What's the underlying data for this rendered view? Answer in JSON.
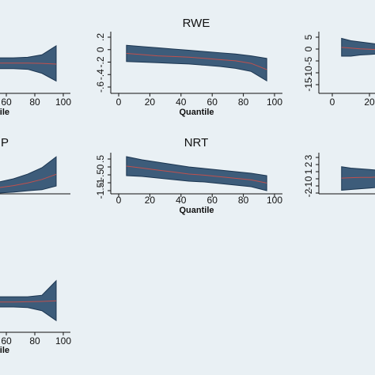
{
  "chart_data": [
    {
      "type": "quantile",
      "xlabel": "Quantile",
      "xlim": [
        0,
        100
      ],
      "ylim": [
        -1,
        1
      ],
      "xticks": [
        60,
        80,
        100
      ],
      "yticks": [],
      "x": [
        55,
        65,
        75,
        85,
        95
      ],
      "upper": [
        0.15,
        0.15,
        0.17,
        0.25,
        0.54
      ],
      "lower": [
        -0.2,
        -0.2,
        -0.22,
        -0.35,
        -0.6
      ],
      "estimate": [
        -0.02,
        -0.02,
        -0.02,
        -0.03,
        -0.05
      ],
      "color": "#3d5c7a",
      "line_color": "#c0504d"
    },
    {
      "type": "quantile",
      "title": "RWE",
      "xlabel": "Quantile",
      "xlim": [
        0,
        100
      ],
      "ylim": [
        -0.6,
        0.2
      ],
      "xticks": [
        0,
        20,
        40,
        60,
        80,
        100
      ],
      "yticks": [
        {
          "value": -0.6,
          "label": "-.6"
        },
        {
          "value": -0.4,
          "label": "-.4"
        },
        {
          "value": -0.2,
          "label": "-.2"
        },
        0,
        {
          "value": 0.2,
          "label": ".2"
        }
      ],
      "x": [
        5,
        15,
        25,
        35,
        45,
        55,
        65,
        75,
        85,
        95
      ],
      "upper": [
        0.07,
        0.05,
        0.03,
        0.01,
        -0.01,
        -0.03,
        -0.05,
        -0.07,
        -0.1,
        -0.14
      ],
      "lower": [
        -0.19,
        -0.2,
        -0.21,
        -0.22,
        -0.23,
        -0.25,
        -0.27,
        -0.3,
        -0.35,
        -0.5
      ],
      "estimate": [
        -0.06,
        -0.08,
        -0.1,
        -0.11,
        -0.12,
        -0.14,
        -0.16,
        -0.18,
        -0.22,
        -0.32
      ],
      "color": "#3d5c7a",
      "line_color": "#c0504d"
    },
    {
      "type": "quantile",
      "xlim": [
        0,
        100
      ],
      "ylim": [
        -15,
        5
      ],
      "xticks": [
        0,
        20
      ],
      "yticks": [
        -15,
        -10,
        -5,
        0,
        5
      ],
      "x": [
        5,
        10,
        15,
        20,
        25
      ],
      "upper": [
        4.5,
        3.5,
        3,
        2.5,
        2
      ],
      "lower": [
        -3,
        -3,
        -2.5,
        -2.3,
        -2
      ],
      "estimate": [
        0.7,
        0.4,
        0.1,
        -0.1,
        -0.3
      ],
      "color": "#3d5c7a",
      "line_color": "#c0504d"
    },
    {
      "type": "quantile",
      "title": "P",
      "xlim": [
        0,
        100
      ],
      "ylim": [
        -1,
        1
      ],
      "xticks": [],
      "yticks": [],
      "x": [
        55,
        65,
        75,
        85,
        95
      ],
      "upper": [
        -0.42,
        -0.27,
        -0.04,
        0.27,
        0.8
      ],
      "lower": [
        -0.96,
        -0.92,
        -0.85,
        -0.8,
        -0.62
      ],
      "estimate": [
        -0.7,
        -0.6,
        -0.47,
        -0.3,
        -0.05
      ],
      "color": "#3d5c7a",
      "line_color": "#c0504d"
    },
    {
      "type": "quantile",
      "title": "NRT",
      "xlabel": "Quantile",
      "xlim": [
        0,
        100
      ],
      "ylim": [
        -1.5,
        0.5
      ],
      "xticks": [
        0,
        20,
        40,
        60,
        80,
        100
      ],
      "yticks": [
        -1.5,
        -1,
        {
          "value": -0.5,
          "label": "-.5"
        },
        0,
        {
          "value": 0.5,
          "label": ".5"
        }
      ],
      "x": [
        5,
        15,
        25,
        35,
        45,
        55,
        65,
        75,
        85,
        95
      ],
      "upper": [
        0.65,
        0.45,
        0.3,
        0.15,
        0.0,
        -0.1,
        -0.2,
        -0.3,
        -0.4,
        -0.55
      ],
      "lower": [
        -0.55,
        -0.6,
        -0.7,
        -0.8,
        -0.9,
        -0.95,
        -1.05,
        -1.15,
        -1.25,
        -1.5
      ],
      "estimate": [
        0.05,
        -0.07,
        -0.2,
        -0.32,
        -0.45,
        -0.52,
        -0.62,
        -0.72,
        -0.82,
        -1.02
      ],
      "color": "#3d5c7a",
      "line_color": "#c0504d"
    },
    {
      "type": "quantile",
      "xlim": [
        0,
        100
      ],
      "ylim": [
        -2,
        3
      ],
      "xticks": [],
      "yticks": [
        -2,
        -1,
        0,
        1,
        2,
        3
      ],
      "x": [
        5,
        10,
        15,
        20,
        25
      ],
      "upper": [
        1.7,
        1.5,
        1.4,
        1.3,
        1.2
      ],
      "lower": [
        -1.6,
        -1.5,
        -1.4,
        -1.3,
        -1.2
      ],
      "estimate": [
        0.1,
        0.15,
        0.2,
        0.2,
        0.25
      ],
      "color": "#3d5c7a",
      "line_color": "#c0504d"
    },
    {
      "type": "quantile",
      "xlabel": "Quantile",
      "xlim": [
        0,
        100
      ],
      "ylim": [
        -1,
        1
      ],
      "xticks": [
        60,
        80,
        100
      ],
      "yticks": [],
      "x": [
        55,
        65,
        75,
        85,
        95
      ],
      "upper": [
        0.15,
        0.15,
        0.15,
        0.2,
        0.67
      ],
      "lower": [
        -0.18,
        -0.18,
        -0.2,
        -0.3,
        -0.62
      ],
      "estimate": [
        -0.02,
        -0.02,
        -0.01,
        0,
        0.02
      ],
      "color": "#3d5c7a",
      "line_color": "#c0504d"
    }
  ]
}
